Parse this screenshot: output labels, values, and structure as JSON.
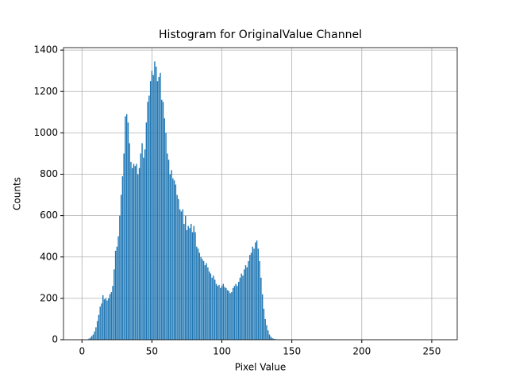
{
  "chart_data": {
    "type": "bar",
    "title": "Histogram for OriginalValue Channel",
    "xlabel": "Pixel Value",
    "ylabel": "Counts",
    "color": "#1f77b4",
    "bar_width": 0.8,
    "grid": true,
    "xlim": [
      -13.2,
      268.2
    ],
    "ylim": [
      0,
      1412
    ],
    "xticks": [
      0,
      50,
      100,
      150,
      200,
      250
    ],
    "yticks": [
      0,
      200,
      400,
      600,
      800,
      1000,
      1200,
      1400
    ],
    "x": [
      0,
      1,
      2,
      3,
      4,
      5,
      6,
      7,
      8,
      9,
      10,
      11,
      12,
      13,
      14,
      15,
      16,
      17,
      18,
      19,
      20,
      21,
      22,
      23,
      24,
      25,
      26,
      27,
      28,
      29,
      30,
      31,
      32,
      33,
      34,
      35,
      36,
      37,
      38,
      39,
      40,
      41,
      42,
      43,
      44,
      45,
      46,
      47,
      48,
      49,
      50,
      51,
      52,
      53,
      54,
      55,
      56,
      57,
      58,
      59,
      60,
      61,
      62,
      63,
      64,
      65,
      66,
      67,
      68,
      69,
      70,
      71,
      72,
      73,
      74,
      75,
      76,
      77,
      78,
      79,
      80,
      81,
      82,
      83,
      84,
      85,
      86,
      87,
      88,
      89,
      90,
      91,
      92,
      93,
      94,
      95,
      96,
      97,
      98,
      99,
      100,
      101,
      102,
      103,
      104,
      105,
      106,
      107,
      108,
      109,
      110,
      111,
      112,
      113,
      114,
      115,
      116,
      117,
      118,
      119,
      120,
      121,
      122,
      123,
      124,
      125,
      126,
      127,
      128,
      129,
      130,
      131,
      132,
      133,
      134,
      135,
      136,
      137,
      138,
      139,
      140,
      141,
      142,
      143,
      144,
      145,
      146,
      147,
      148,
      149,
      150,
      151,
      152,
      153,
      154,
      155,
      156,
      157,
      158,
      159,
      160,
      161,
      162,
      163,
      164,
      165,
      166,
      167,
      168,
      169,
      170,
      171,
      172,
      173,
      174,
      175,
      176,
      177,
      178,
      179,
      180,
      181,
      182,
      183,
      184,
      185,
      186,
      187,
      188,
      189,
      190,
      191,
      192,
      193,
      194,
      195,
      196,
      197,
      198,
      199,
      200,
      201,
      202,
      203,
      204,
      205,
      206,
      207,
      208,
      209,
      210,
      211,
      212,
      213,
      214,
      215,
      216,
      217,
      218,
      219,
      220,
      221,
      222,
      223,
      224,
      225,
      226,
      227,
      228,
      229,
      230,
      231,
      232,
      233,
      234,
      235,
      236,
      237,
      238,
      239,
      240,
      241,
      242,
      243,
      244,
      245,
      246,
      247,
      248,
      249,
      250,
      251,
      252,
      253,
      254,
      255
    ],
    "values": [
      0,
      0,
      0,
      0,
      2,
      5,
      10,
      18,
      25,
      40,
      60,
      90,
      120,
      160,
      175,
      215,
      195,
      200,
      190,
      200,
      220,
      230,
      260,
      340,
      430,
      450,
      500,
      600,
      700,
      790,
      900,
      1080,
      1090,
      1050,
      950,
      860,
      830,
      850,
      840,
      850,
      800,
      830,
      900,
      950,
      880,
      920,
      1050,
      1150,
      1180,
      1250,
      1300,
      1280,
      1345,
      1320,
      1250,
      1270,
      1290,
      1160,
      1150,
      1070,
      1000,
      900,
      870,
      800,
      820,
      780,
      770,
      750,
      700,
      680,
      630,
      620,
      630,
      560,
      600,
      530,
      550,
      540,
      560,
      520,
      550,
      520,
      450,
      440,
      420,
      400,
      390,
      380,
      360,
      370,
      350,
      330,
      320,
      300,
      310,
      290,
      270,
      260,
      265,
      250,
      260,
      270,
      255,
      250,
      240,
      235,
      225,
      230,
      250,
      260,
      270,
      260,
      280,
      300,
      320,
      310,
      340,
      360,
      350,
      380,
      410,
      420,
      450,
      440,
      470,
      480,
      440,
      380,
      300,
      220,
      150,
      100,
      70,
      45,
      25,
      15,
      8,
      5,
      3,
      2,
      1,
      0,
      0,
      0,
      0,
      0,
      0,
      0,
      0,
      0,
      0,
      0,
      0,
      0,
      0,
      0,
      0,
      0,
      0,
      0,
      0,
      0,
      0,
      0,
      0,
      0,
      0,
      0,
      0,
      0,
      0,
      0,
      0,
      0,
      0,
      0,
      0,
      0,
      0,
      0,
      0,
      0,
      0,
      0,
      0,
      0,
      0,
      0,
      0,
      0,
      0,
      0,
      0,
      0,
      0,
      0,
      0,
      0,
      0,
      0,
      0,
      0,
      0,
      0,
      0,
      0,
      0,
      0,
      0,
      0,
      0,
      0,
      0,
      0,
      0,
      0,
      0,
      0,
      0,
      0,
      0,
      0,
      0,
      0,
      0,
      0,
      0,
      0,
      0,
      0,
      0,
      0,
      0,
      0,
      0,
      0,
      0,
      0,
      0,
      0,
      0,
      0,
      0,
      0,
      0,
      0,
      0,
      0,
      0,
      0,
      0,
      0,
      0,
      0,
      0,
      0
    ]
  }
}
